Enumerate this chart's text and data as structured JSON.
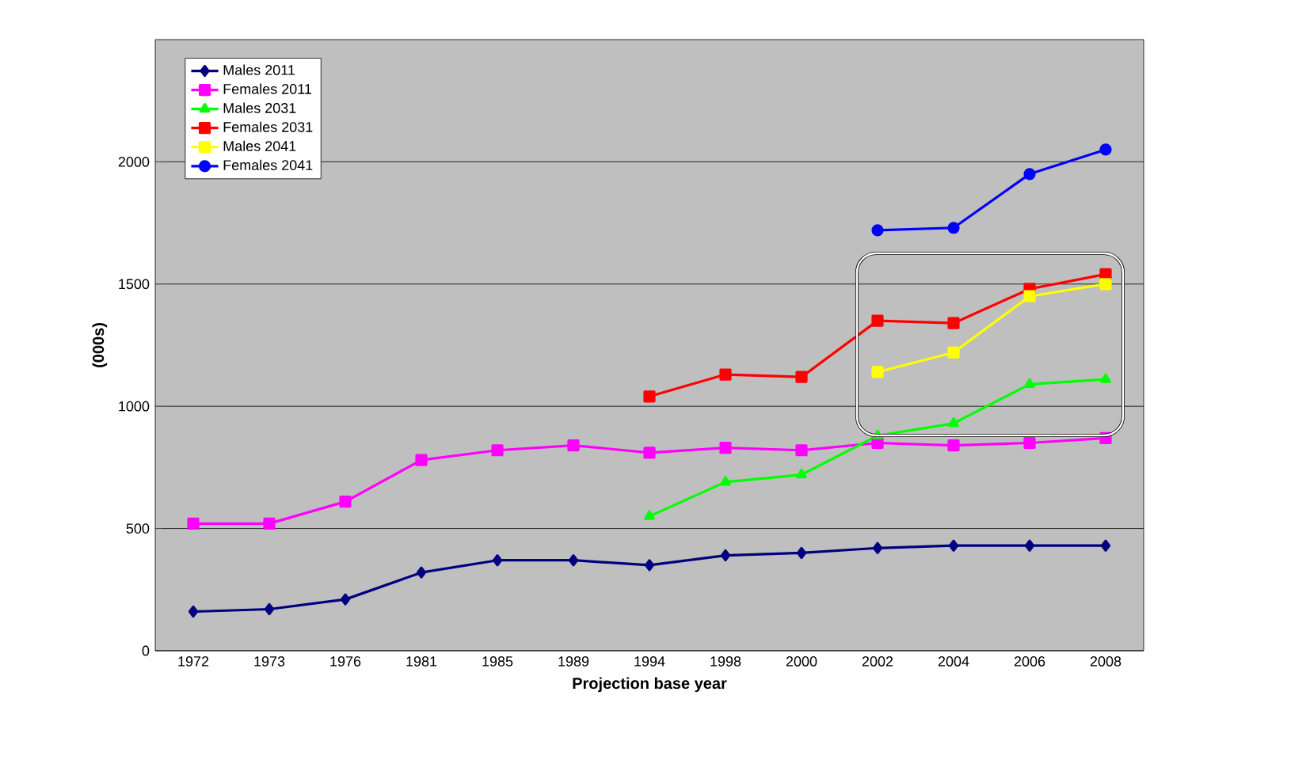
{
  "chart_data": {
    "type": "line",
    "xlabel": "Projection base year",
    "ylabel": "(000s)",
    "categories": [
      "1972",
      "1973",
      "1976",
      "1981",
      "1985",
      "1989",
      "1994",
      "1998",
      "2000",
      "2002",
      "2004",
      "2006",
      "2008"
    ],
    "ylim": [
      0,
      2500
    ],
    "yticks": [
      0,
      500,
      1000,
      1500,
      2000
    ],
    "grid": "y",
    "legend": "top left",
    "series": [
      {
        "name": "Males 2011",
        "color": "#000080",
        "marker": "diamond",
        "values": [
          160,
          170,
          210,
          320,
          370,
          370,
          350,
          390,
          400,
          420,
          430,
          430,
          430
        ]
      },
      {
        "name": "Females 2011",
        "color": "#ff00ff",
        "marker": "square",
        "values": [
          520,
          520,
          610,
          780,
          820,
          840,
          810,
          830,
          820,
          850,
          840,
          850,
          870
        ]
      },
      {
        "name": "Males 2031",
        "color": "#00ff00",
        "marker": "triangle",
        "values": [
          null,
          null,
          null,
          null,
          null,
          null,
          550,
          690,
          720,
          880,
          930,
          1090,
          1110
        ]
      },
      {
        "name": "Females 2031",
        "color": "#ff0000",
        "marker": "square",
        "values": [
          null,
          null,
          null,
          null,
          null,
          null,
          1040,
          1130,
          1120,
          1350,
          1340,
          1480,
          1540
        ]
      },
      {
        "name": "Males 2041",
        "color": "#ffff00",
        "marker": "square",
        "values": [
          null,
          null,
          null,
          null,
          null,
          null,
          null,
          null,
          null,
          1140,
          1220,
          1450,
          1500
        ]
      },
      {
        "name": "Females 2041",
        "color": "#0000ff",
        "marker": "circle",
        "values": [
          null,
          null,
          null,
          null,
          null,
          null,
          null,
          null,
          null,
          1720,
          1730,
          1950,
          2050
        ]
      }
    ]
  }
}
